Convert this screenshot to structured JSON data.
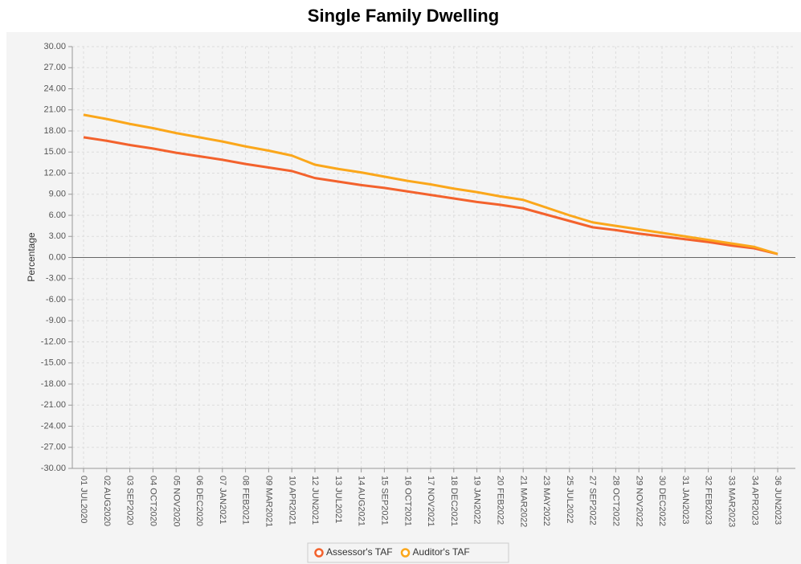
{
  "chart_data": {
    "type": "line",
    "title": "Single Family Dwelling",
    "y_label": "Percentage",
    "categories": [
      "01 JUL2020",
      "02 AUG2020",
      "03 SEP2020",
      "04 OCT2020",
      "05 NOV2020",
      "06 DEC2020",
      "07 JAN2021",
      "08 FEB2021",
      "09 MAR2021",
      "10 APR2021",
      "12 JUN2021",
      "13 JUL2021",
      "14 AUG2021",
      "15 SEP2021",
      "16 OCT2021",
      "17 NOV2021",
      "18 DEC2021",
      "19 JAN2022",
      "20 FEB2022",
      "21 MAR2022",
      "23 MAY2022",
      "25 JUL2022",
      "27 SEP2022",
      "28 OCT2022",
      "29 NOV2022",
      "30 DEC2022",
      "31 JAN2023",
      "32 FEB2023",
      "33 MAR2023",
      "34 APR2023",
      "36 JUN2023"
    ],
    "series": [
      {
        "name": "Assessor's TAF",
        "color": "#f3622d",
        "values": [
          17.1,
          16.6,
          16.0,
          15.5,
          14.9,
          14.4,
          13.9,
          13.3,
          12.8,
          12.3,
          11.3,
          10.8,
          10.3,
          9.9,
          9.4,
          8.9,
          8.4,
          7.9,
          7.5,
          7.0,
          6.1,
          5.2,
          4.3,
          3.9,
          3.4,
          3.0,
          2.6,
          2.2,
          1.7,
          1.3,
          0.5
        ]
      },
      {
        "name": "Auditor's TAF",
        "color": "#fba71b",
        "values": [
          20.3,
          19.7,
          19.0,
          18.4,
          17.7,
          17.1,
          16.5,
          15.8,
          15.2,
          14.5,
          13.2,
          12.6,
          12.1,
          11.5,
          10.9,
          10.4,
          9.8,
          9.3,
          8.7,
          8.2,
          7.1,
          6.0,
          5.0,
          4.5,
          4.0,
          3.5,
          3.0,
          2.5,
          2.0,
          1.5,
          0.5
        ]
      }
    ],
    "ylim": [
      -30,
      30
    ],
    "yticks": [
      {
        "value": 30,
        "label": "30.00"
      },
      {
        "value": 27,
        "label": "27.00"
      },
      {
        "value": 24,
        "label": "24.00"
      },
      {
        "value": 21,
        "label": "21.00"
      },
      {
        "value": 18,
        "label": "18.00"
      },
      {
        "value": 15,
        "label": "15.00"
      },
      {
        "value": 12,
        "label": "12.00"
      },
      {
        "value": 9,
        "label": "9.00"
      },
      {
        "value": 6,
        "label": "6.00"
      },
      {
        "value": 3,
        "label": "3.00"
      },
      {
        "value": 0,
        "label": "0.00"
      },
      {
        "value": -3,
        "label": "-3.00"
      },
      {
        "value": -6,
        "label": "-6.00"
      },
      {
        "value": -9,
        "label": "-9.00"
      },
      {
        "value": -12,
        "label": "-12.00"
      },
      {
        "value": -15,
        "label": "-15.00"
      },
      {
        "value": -18,
        "label": "-18.00"
      },
      {
        "value": -21,
        "label": "-21.00"
      },
      {
        "value": -24,
        "label": "-24.00"
      },
      {
        "value": -27,
        "label": "-27.00"
      },
      {
        "value": -30,
        "label": "-30.00"
      }
    ],
    "grid": true,
    "legend": "bottom"
  }
}
